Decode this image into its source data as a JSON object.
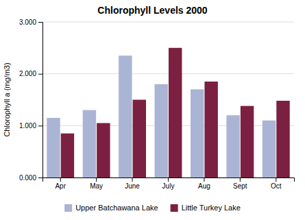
{
  "chart_data": {
    "type": "bar",
    "title": "Chlorophyll Levels 2000",
    "ylabel": "Chlorophyll a (mg/m3)",
    "categories": [
      "Apr",
      "May",
      "June",
      "July",
      "Aug",
      "Sept",
      "Oct"
    ],
    "series": [
      {
        "name": "Upper Batchawana Lake",
        "color": "#aab4d4",
        "values": [
          1.15,
          1.3,
          2.35,
          1.8,
          1.7,
          1.2,
          1.1
        ]
      },
      {
        "name": "Little Turkey Lake",
        "color": "#7b2040",
        "values": [
          0.85,
          1.05,
          1.5,
          2.5,
          1.85,
          1.38,
          1.48
        ]
      }
    ],
    "ylim": [
      0.0,
      3.0
    ],
    "yticks": [
      {
        "value": 0.0,
        "label": "0.000"
      },
      {
        "value": 1.0,
        "label": "1.000"
      },
      {
        "value": 2.0,
        "label": "2.000"
      },
      {
        "value": 3.0,
        "label": "3.000"
      }
    ],
    "grid": true,
    "legend": "bottom"
  }
}
